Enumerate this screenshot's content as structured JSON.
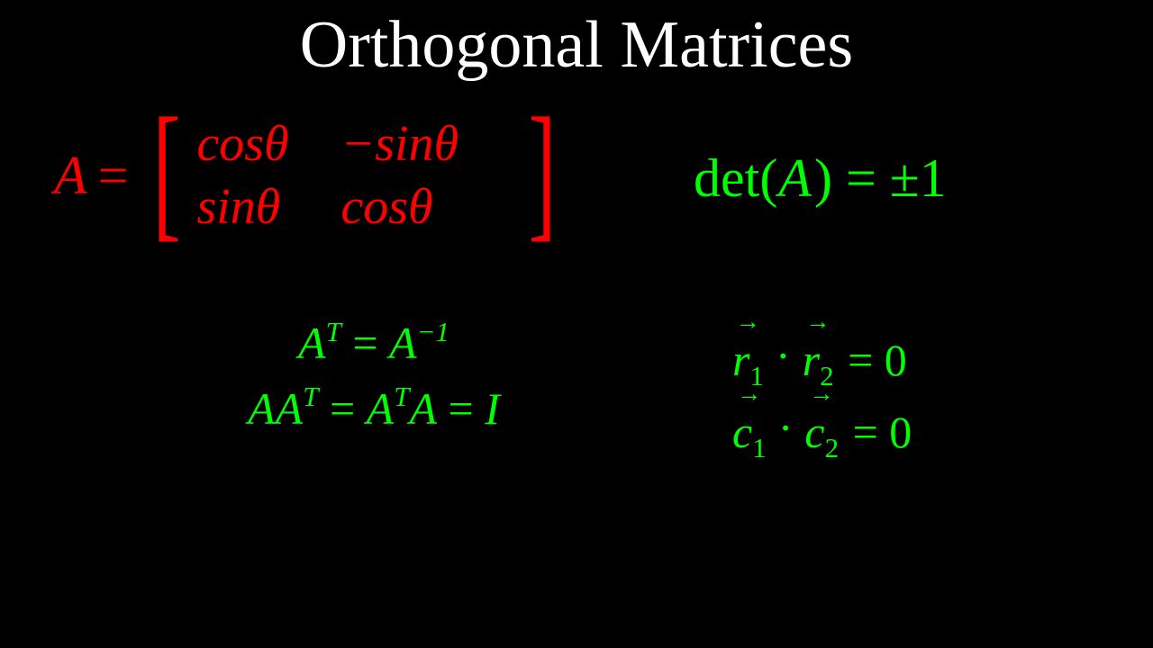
{
  "colors": {
    "background": "#000000",
    "title": "#ffffff",
    "matrix": "#ff0000",
    "properties": "#00ff00"
  },
  "title": "Orthogonal Matrices",
  "matrix": {
    "lhs_symbol": "A",
    "equals": "=",
    "rows": [
      {
        "c1": "cosθ",
        "c2": "−sinθ"
      },
      {
        "c1": "sinθ",
        "c2": "cosθ"
      }
    ],
    "bracket_left": "[",
    "bracket_right": "]"
  },
  "determinant": {
    "label": "det",
    "open": "(",
    "symbol": "A",
    "close": ")",
    "equals": " = ",
    "value": "±1"
  },
  "transpose_properties": {
    "line1": {
      "lhs_base": "A",
      "lhs_sup": "T",
      "eq": " = ",
      "rhs_base": "A",
      "rhs_sup": "−1"
    },
    "line2": {
      "t1_base": "A",
      "t2_base": "A",
      "t2_sup": "T",
      "eq1": " = ",
      "t3_base": "A",
      "t3_sup": "T",
      "t4_base": "A",
      "eq2": " = ",
      "rhs": "I"
    }
  },
  "orthogonality": {
    "arrow_glyph": "→",
    "dot_glyph": "·",
    "eq_zero": " = 0",
    "rows": {
      "sym": "r",
      "sub1": "1",
      "sub2": "2"
    },
    "cols": {
      "sym": "c",
      "sub1": "1",
      "sub2": "2"
    }
  }
}
